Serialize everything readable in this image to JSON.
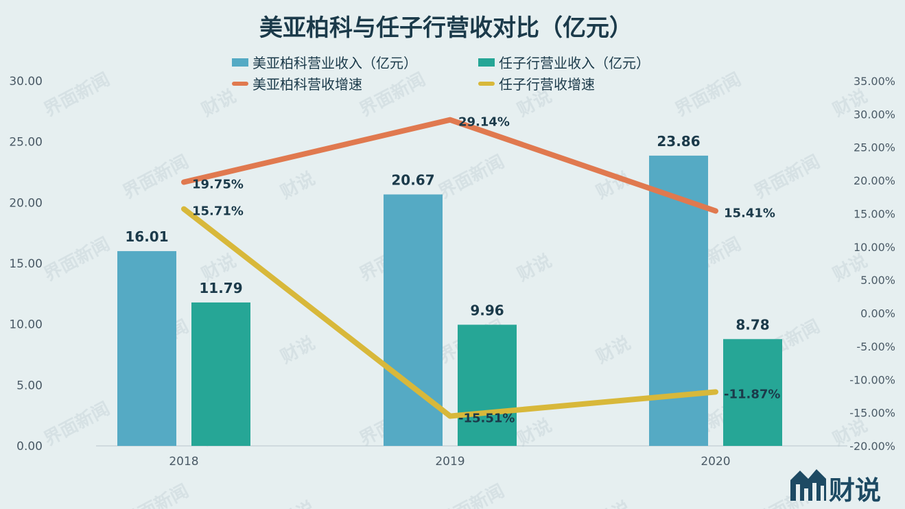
{
  "brand": {
    "logo_text": "财说",
    "watermarks": [
      "界面新闻",
      "财说"
    ]
  },
  "colors": {
    "background": "#e6eff0",
    "bar_meiya": "#55aac4",
    "bar_renzi": "#26a696",
    "line_meiya": "#e0794f",
    "line_renzi": "#d8b83a",
    "text": "#1b3a4a",
    "axis_text": "#4a5a66"
  },
  "chart_data": {
    "type": "bar",
    "title": "美亚柏科与任子行营收对比（亿元）",
    "categories": [
      "2018",
      "2019",
      "2020"
    ],
    "series": [
      {
        "name": "美亚柏科营业收入（亿元）",
        "type": "bar",
        "axis": "left",
        "values": [
          16.01,
          20.67,
          23.86
        ],
        "labels": [
          "16.01",
          "20.67",
          "23.86"
        ]
      },
      {
        "name": "任子行营业收入（亿元）",
        "type": "bar",
        "axis": "left",
        "values": [
          11.79,
          9.96,
          8.78
        ],
        "labels": [
          "11.79",
          "9.96",
          "8.78"
        ]
      },
      {
        "name": "美亚柏科营收增速",
        "type": "line",
        "axis": "right",
        "values": [
          19.75,
          29.14,
          15.41
        ],
        "labels": [
          "19.75%",
          "29.14%",
          "15.41%"
        ]
      },
      {
        "name": "任子行营收增速",
        "type": "line",
        "axis": "right",
        "values": [
          15.71,
          -15.51,
          -11.87
        ],
        "labels": [
          "15.71%",
          "-15.51%",
          "-11.87%"
        ]
      }
    ],
    "y_left": {
      "min": 0,
      "max": 30,
      "step": 5,
      "tick_labels": [
        "0.00",
        "5.00",
        "10.00",
        "15.00",
        "20.00",
        "25.00",
        "30.00"
      ]
    },
    "y_right": {
      "min": -20,
      "max": 35,
      "step": 5,
      "tick_labels": [
        "-20.00%",
        "-15.00%",
        "-10.00%",
        "-5.00%",
        "0.00%",
        "5.00%",
        "10.00%",
        "15.00%",
        "20.00%",
        "25.00%",
        "30.00%",
        "35.00%"
      ]
    },
    "legend_position": "top",
    "grid": false
  }
}
